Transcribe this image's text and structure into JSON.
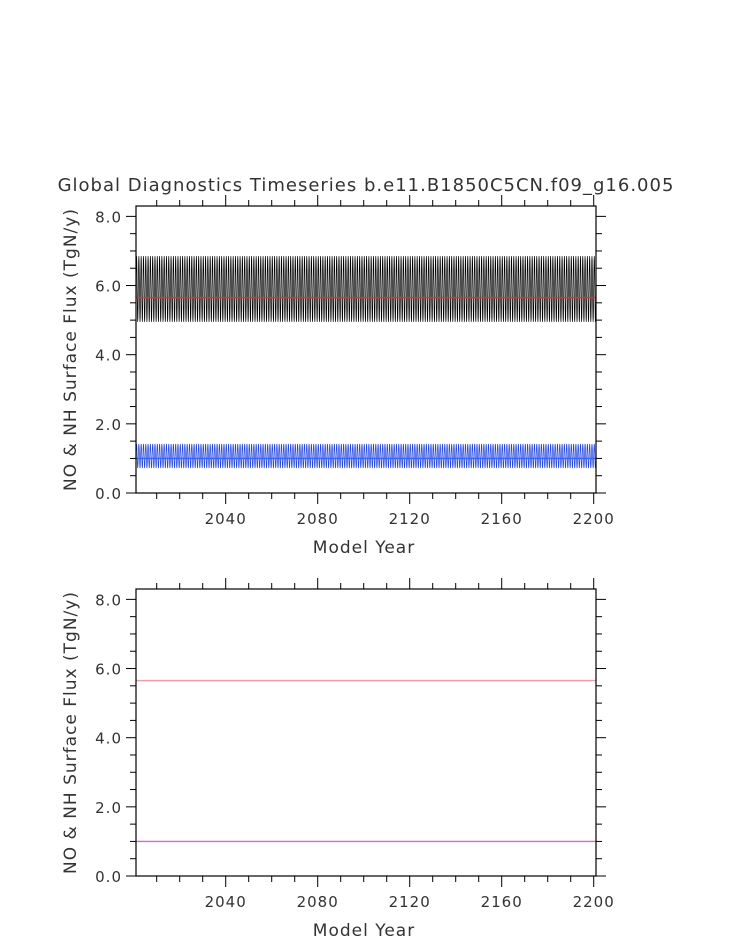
{
  "chart_data": [
    {
      "type": "line",
      "title": "Global Diagnostics Timeseries b.e11.B1850C5CN.f09_g16.005",
      "xlabel": "Model Year",
      "ylabel": "NO & NH Surface Flux (TgN/y)",
      "xlim": [
        2001,
        2201
      ],
      "ylim": [
        0,
        8.3
      ],
      "x_ticks": [
        2040,
        2080,
        2120,
        2160,
        2200
      ],
      "y_ticks": [
        0,
        2,
        4,
        6,
        8
      ],
      "y_tick_labels": [
        "0.0",
        "2.0",
        "4.0",
        "6.0",
        "8.0"
      ],
      "series": [
        {
          "kind": "seasonal",
          "color": "#000000",
          "min": 4.95,
          "max": 6.85,
          "x_start": 2001,
          "x_end": 2201
        },
        {
          "kind": "annual-mean",
          "color": "#e03030",
          "value": 5.65,
          "x_start": 2001,
          "x_end": 2201
        },
        {
          "kind": "seasonal",
          "color": "#2244dd",
          "min": 0.72,
          "max": 1.42,
          "x_start": 2001,
          "x_end": 2201
        },
        {
          "kind": "annual-mean",
          "color": "#3366ff",
          "value": 1.0,
          "x_start": 2001,
          "x_end": 2201
        }
      ]
    },
    {
      "type": "line",
      "title": "",
      "xlabel": "Model Year",
      "ylabel": "NO & NH Surface Flux (TgN/y)",
      "xlim": [
        2001,
        2201
      ],
      "ylim": [
        0,
        8.3
      ],
      "x_ticks": [
        2040,
        2080,
        2120,
        2160,
        2200
      ],
      "y_ticks": [
        0,
        2,
        4,
        6,
        8
      ],
      "y_tick_labels": [
        "0.0",
        "2.0",
        "4.0",
        "6.0",
        "8.0"
      ],
      "series": [
        {
          "kind": "annual-mean",
          "color": "#f0a0a8",
          "value": 5.65,
          "x_start": 2001,
          "x_end": 2201
        },
        {
          "kind": "annual-mean",
          "color": "#dd66cc",
          "value": 1.0,
          "x_start": 2001,
          "x_end": 2201
        }
      ]
    }
  ]
}
